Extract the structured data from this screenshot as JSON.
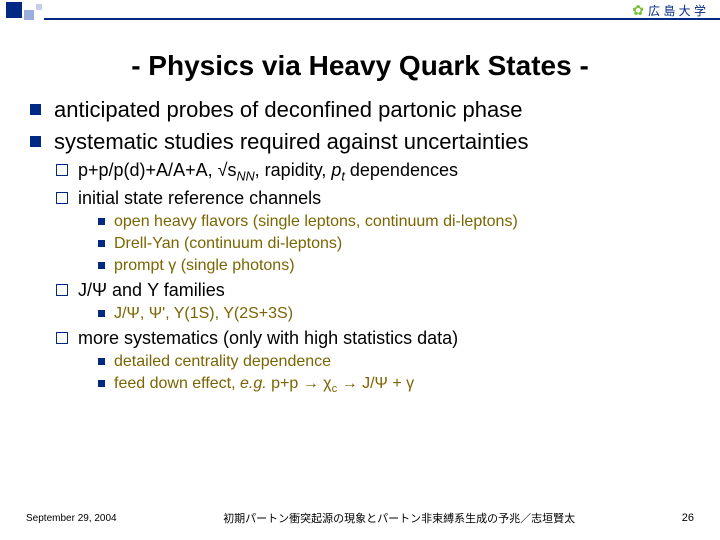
{
  "logo_text": "広 島 大 学",
  "title": "- Physics via Heavy Quark States -",
  "bullets": {
    "b1": "anticipated probes of deconfined partonic phase",
    "b2": "systematic studies required against uncertainties",
    "s1_pre": "p+p/p(d)+A/A+A, √s",
    "s1_sub": "NN",
    "s1_mid": ", rapidity, ",
    "s1_pt_p": "p",
    "s1_pt_t": "t",
    "s1_post": " dependences",
    "s2": "initial state reference channels",
    "s2a": "open heavy flavors (single leptons, continuum di-leptons)",
    "s2b": "Drell-Yan (continuum di-leptons)",
    "s2c": "prompt γ (single photons)",
    "s3": "J/Ψ and Υ families",
    "s3a": "J/Ψ, Ψ', Υ(1S), Υ(2S+3S)",
    "s4": "more systematics (only with high statistics data)",
    "s4a": "detailed centrality dependence",
    "s4b_pre": "feed down effect, ",
    "s4b_eg": "e.g.",
    "s4b_post": " p+p → χ",
    "s4b_c": "c",
    "s4b_tail": " → J/Ψ + γ"
  },
  "footer": {
    "date": "September 29, 2004",
    "center": "初期パートン衝突起源の現象とパートン非束縛系生成の予兆／志垣賢太",
    "page": "26"
  }
}
